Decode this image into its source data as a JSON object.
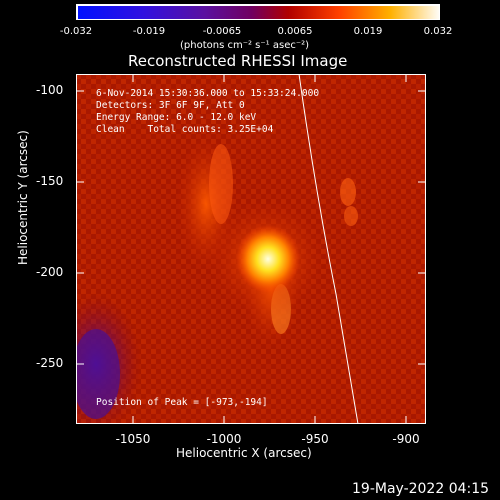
{
  "colorbar": {
    "ticks": [
      "-0.032",
      "-0.019",
      "-0.0065",
      "0.0065",
      "0.019",
      "0.032"
    ],
    "units": "(photons cm⁻² s⁻¹ asec⁻²)"
  },
  "title": "Reconstructed RHESSI Image",
  "annotations": {
    "line1": "6-Nov-2014 15:30:36.000 to 15:33:24.000",
    "line2": "Detectors: 3F 6F 9F, Att 0",
    "line3": "Energy Range: 6.0 - 12.0 keV",
    "line4": "Clean    Total counts: 3.25E+04",
    "peak": "Position of Peak = [-973,-194]"
  },
  "axes": {
    "xlabel": "Heliocentric X (arcsec)",
    "ylabel": "Heliocentric Y (arcsec)",
    "xticks": [
      "-1050",
      "-1000",
      "-950",
      "-900"
    ],
    "yticks": [
      "-100",
      "-150",
      "-200",
      "-250"
    ]
  },
  "footer": {
    "timestamp": "19-May-2022 04:15"
  },
  "colors": {
    "background": "#000000",
    "image_base": "#b01800",
    "peak_core": "#ffffe0",
    "limb_line": "#ffffff"
  }
}
